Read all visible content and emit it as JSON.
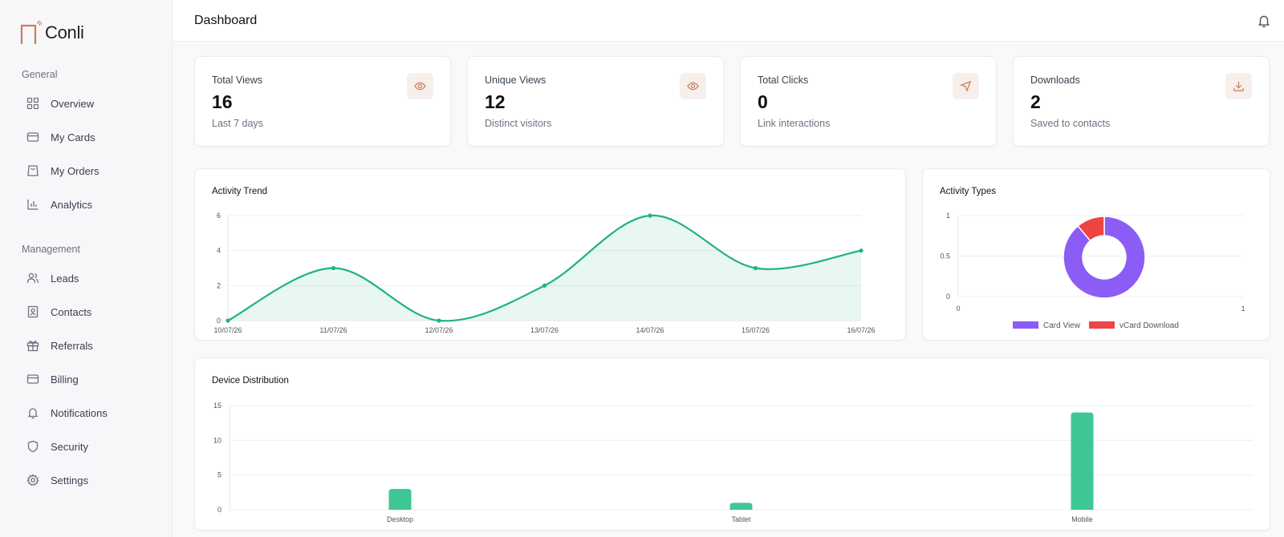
{
  "brand": {
    "name": "Conli"
  },
  "sidebar": {
    "sections": [
      {
        "title": "General",
        "items": [
          {
            "label": "Overview",
            "icon": "grid-icon"
          },
          {
            "label": "My Cards",
            "icon": "card-icon"
          },
          {
            "label": "My Orders",
            "icon": "bag-icon"
          },
          {
            "label": "Analytics",
            "icon": "bar-chart-icon"
          }
        ]
      },
      {
        "title": "Management",
        "items": [
          {
            "label": "Leads",
            "icon": "users-icon"
          },
          {
            "label": "Contacts",
            "icon": "contact-icon"
          },
          {
            "label": "Referrals",
            "icon": "gift-icon"
          },
          {
            "label": "Billing",
            "icon": "card-icon"
          },
          {
            "label": "Notifications",
            "icon": "bell-icon"
          },
          {
            "label": "Security",
            "icon": "shield-icon"
          },
          {
            "label": "Settings",
            "icon": "gear-icon"
          }
        ]
      }
    ]
  },
  "header": {
    "title": "Dashboard"
  },
  "stats": [
    {
      "title": "Total Views",
      "value": "16",
      "sub": "Last 7 days",
      "icon": "eye-icon"
    },
    {
      "title": "Unique Views",
      "value": "12",
      "sub": "Distinct visitors",
      "icon": "eye-icon"
    },
    {
      "title": "Total Clicks",
      "value": "0",
      "sub": "Link interactions",
      "icon": "cursor-icon"
    },
    {
      "title": "Downloads",
      "value": "2",
      "sub": "Saved to contacts",
      "icon": "download-icon"
    }
  ],
  "colors": {
    "accent": "#c97b5c",
    "green": "#1fb37c",
    "green_bar": "#3ec795",
    "purple": "#8b5cf6",
    "red": "#ef4444"
  },
  "chart_data": [
    {
      "type": "area",
      "title": "Activity Trend",
      "categories": [
        "10/07/26",
        "11/07/26",
        "12/07/26",
        "13/07/26",
        "14/07/26",
        "15/07/26",
        "16/07/26"
      ],
      "values": [
        0,
        3,
        0,
        2,
        6,
        3,
        4
      ],
      "ylim": [
        0,
        6
      ],
      "yticks": [
        "0",
        "2",
        "4",
        "6"
      ],
      "grid": true
    },
    {
      "type": "pie",
      "title": "Activity Types",
      "labels": [
        "Card View",
        "vCard Download"
      ],
      "values": [
        16,
        2
      ],
      "yticks": [
        "0",
        "0.5",
        "1"
      ],
      "xticks": [
        "0",
        "1"
      ],
      "legend": "bottom"
    },
    {
      "type": "bar",
      "title": "Device Distribution",
      "categories": [
        "Desktop",
        "Tablet",
        "Mobile"
      ],
      "values": [
        3,
        1,
        14
      ],
      "ylim": [
        0,
        15
      ],
      "yticks": [
        "0",
        "5",
        "10",
        "15"
      ],
      "grid": true
    }
  ]
}
